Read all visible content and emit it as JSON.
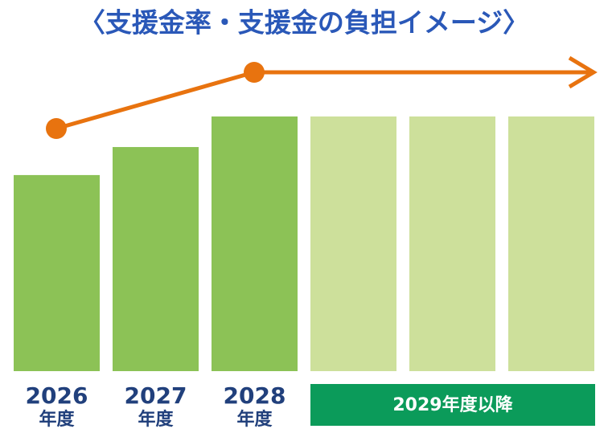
{
  "chart_data": {
    "type": "bar",
    "title": "〈支援金率・支援金の負担イメージ〉",
    "categories": [
      "2026",
      "2027",
      "2028",
      null,
      null,
      null
    ],
    "category_units": [
      "年度",
      "年度",
      "年度"
    ],
    "span_label": "2029年度以降",
    "values": [
      77,
      88,
      100,
      100,
      100,
      100
    ],
    "colors": [
      "#8cc256",
      "#8cc256",
      "#8cc256",
      "#cde09b",
      "#cde09b",
      "#cde09b"
    ],
    "ylim": [
      0,
      100
    ]
  }
}
